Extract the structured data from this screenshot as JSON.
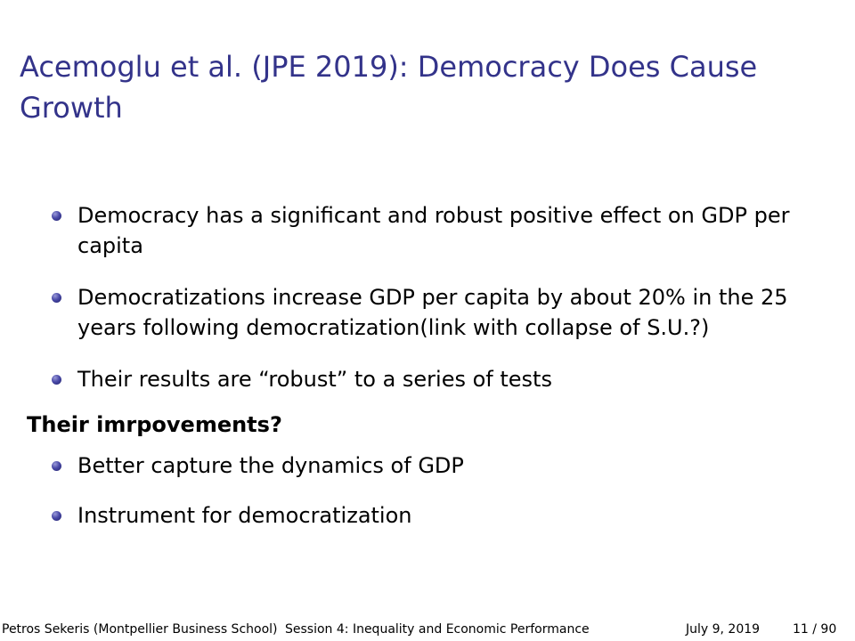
{
  "slide": {
    "title": "Acemoglu et al. (JPE 2019): Democracy Does Cause Growth",
    "bullets": [
      "Democracy has a significant and robust positive effect on GDP per capita",
      "Democratizations increase GDP per capita by about 20% in the 25 years following democratization(link with collapse of S.U.?)",
      "Their results are “robust” to a series of tests"
    ],
    "subheading": "Their imrpovements?",
    "sub_bullets": [
      "Better capture the dynamics of GDP",
      "Instrument for democratization"
    ]
  },
  "footer": {
    "author": "Petros Sekeris (Montpellier Business School)",
    "session": "Session 4: Inequality and Economic Performance",
    "date": "July 9, 2019",
    "page": "11 / 90"
  },
  "colors": {
    "title": "#33338a",
    "bullet": "#4a4aa8",
    "text": "#000000",
    "background": "#ffffff"
  },
  "icons": {
    "bullet": "ball-bullet-icon"
  }
}
